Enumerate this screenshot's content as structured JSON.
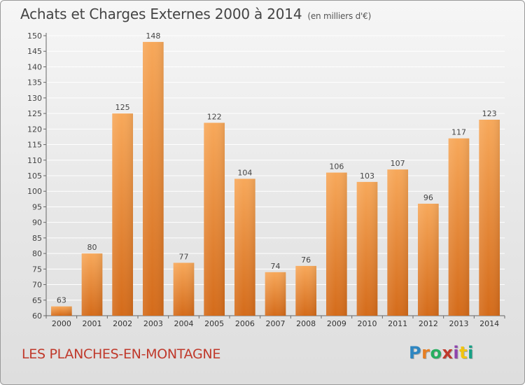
{
  "header": {
    "title": "Achats et Charges Externes 2000 à 2014",
    "unit": "(en milliers d'€)"
  },
  "footer": {
    "commune": "LES PLANCHES-EN-MONTAGNE",
    "logo": {
      "letters": [
        "P",
        "r",
        "o",
        "x",
        "i",
        "t",
        "i"
      ],
      "colors": [
        "#2e86c1",
        "#e67e22",
        "#27ae60",
        "#c0392b",
        "#8e44ad",
        "#f1c40f",
        "#16a085"
      ]
    }
  },
  "colors": {
    "bar_light": "#f7a85a",
    "bar_dark": "#d46b1a",
    "grid": "#ffffff",
    "commune": "#c0392b"
  },
  "chart_data": {
    "type": "bar",
    "title": "Achats et Charges Externes 2000 à 2014",
    "unit": "(en milliers d'€)",
    "xlabel": "",
    "ylabel": "",
    "categories": [
      "2000",
      "2001",
      "2002",
      "2003",
      "2004",
      "2005",
      "2006",
      "2007",
      "2008",
      "2009",
      "2010",
      "2011",
      "2012",
      "2013",
      "2014"
    ],
    "values": [
      63,
      80,
      125,
      148,
      77,
      122,
      104,
      74,
      76,
      106,
      103,
      107,
      96,
      117,
      123
    ],
    "ylim": [
      60,
      150
    ],
    "yticks": [
      60,
      65,
      70,
      75,
      80,
      85,
      90,
      95,
      100,
      105,
      110,
      115,
      120,
      125,
      130,
      135,
      140,
      145,
      150
    ],
    "grid": true,
    "data_labels": true
  }
}
